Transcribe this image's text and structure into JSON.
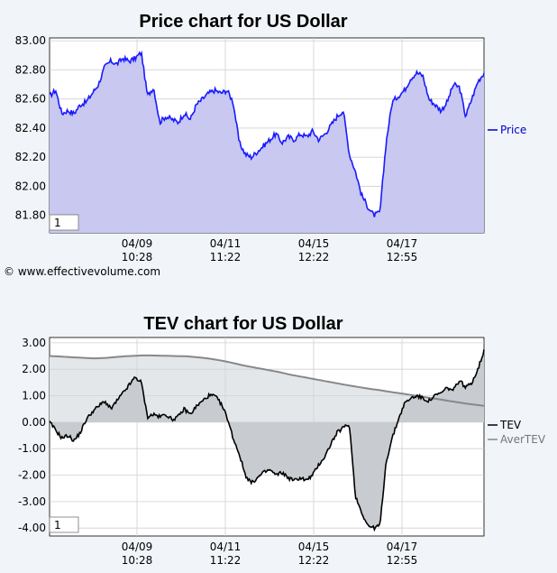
{
  "price_chart": {
    "title": "Price chart for US Dollar",
    "corner_box": "1",
    "copyright": "© www.effectivevolume.com",
    "legend": [
      {
        "name": "Price",
        "color": "#0000cc"
      }
    ],
    "colors": {
      "line": "#1a1aff",
      "fill": "#c8c8f0",
      "plot_bg": "#ffffff",
      "grid": "#d0d0d0",
      "axis": "#000000"
    }
  },
  "tev_chart": {
    "title": "TEV chart for US Dollar",
    "corner_box": "1",
    "legend": [
      {
        "name": "TEV",
        "color": "#000000"
      },
      {
        "name": "AverTEV",
        "color": "#888888"
      }
    ],
    "colors": {
      "line": "#000000",
      "aver_line": "#888888",
      "fill": "#c8ccd0",
      "plot_bg": "#ffffff",
      "grid": "#d0d0d0",
      "aver_fill": "#e4e7ea"
    }
  },
  "chart_data": [
    {
      "type": "line",
      "title": "Price chart for US Dollar",
      "xlabel": "",
      "ylabel": "",
      "ylim": [
        81.68,
        83.02
      ],
      "y_ticks": [
        "83.00",
        "82.80",
        "82.60",
        "82.40",
        "82.20",
        "82.00",
        "81.80"
      ],
      "x_ticks": [
        {
          "date": "04/09",
          "time": "10:28"
        },
        {
          "date": "04/11",
          "time": "11:22"
        },
        {
          "date": "04/15",
          "time": "12:22"
        },
        {
          "date": "04/17",
          "time": "12:55"
        }
      ],
      "grid": true,
      "legend_position": "right",
      "series": [
        {
          "name": "Price",
          "values": [
            82.62,
            82.66,
            82.5,
            82.52,
            82.5,
            82.56,
            82.58,
            82.64,
            82.7,
            82.82,
            82.86,
            82.84,
            82.88,
            82.86,
            82.88,
            82.92,
            82.62,
            82.68,
            82.44,
            82.48,
            82.46,
            82.44,
            82.5,
            82.46,
            82.56,
            82.6,
            82.64,
            82.66,
            82.64,
            82.66,
            82.58,
            82.3,
            82.22,
            82.2,
            82.24,
            82.28,
            82.32,
            82.36,
            82.3,
            82.34,
            82.32,
            82.36,
            82.34,
            82.38,
            82.32,
            82.36,
            82.42,
            82.48,
            82.52,
            82.22,
            82.1,
            81.94,
            81.86,
            81.8,
            81.82,
            82.3,
            82.58,
            82.62,
            82.66,
            82.74,
            82.78,
            82.76,
            82.6,
            82.56,
            82.52,
            82.58,
            82.7,
            82.68,
            82.48,
            82.6,
            82.72,
            82.78
          ]
        }
      ]
    },
    {
      "type": "line",
      "title": "TEV chart for US Dollar",
      "xlabel": "",
      "ylabel": "",
      "ylim": [
        -4.3,
        3.2
      ],
      "y_ticks": [
        "3.00",
        "2.00",
        "1.00",
        "0.00",
        "-1.00",
        "-2.00",
        "-3.00",
        "-4.00"
      ],
      "x_ticks": [
        {
          "date": "04/09",
          "time": "10:28"
        },
        {
          "date": "04/11",
          "time": "11:22"
        },
        {
          "date": "04/15",
          "time": "12:22"
        },
        {
          "date": "04/17",
          "time": "12:55"
        }
      ],
      "grid": true,
      "legend_position": "right",
      "series": [
        {
          "name": "TEV",
          "values": [
            0.0,
            -0.3,
            -0.6,
            -0.5,
            -0.7,
            -0.4,
            0.1,
            0.4,
            0.6,
            0.8,
            0.5,
            0.8,
            1.1,
            1.4,
            1.7,
            1.5,
            0.2,
            0.3,
            0.2,
            0.3,
            0.1,
            0.2,
            0.5,
            0.3,
            0.6,
            0.8,
            1.0,
            1.0,
            0.7,
            0.2,
            -0.6,
            -1.2,
            -2.0,
            -2.3,
            -2.1,
            -1.9,
            -1.8,
            -2.0,
            -1.9,
            -2.1,
            -2.2,
            -2.1,
            -2.2,
            -2.0,
            -1.6,
            -1.3,
            -0.8,
            -0.4,
            -0.2,
            -0.1,
            -2.8,
            -3.4,
            -3.9,
            -4.0,
            -3.9,
            -1.5,
            -0.6,
            0.1,
            0.7,
            0.9,
            1.0,
            0.9,
            0.8,
            1.0,
            1.1,
            1.3,
            1.2,
            1.6,
            1.3,
            1.5,
            2.0,
            2.7
          ]
        },
        {
          "name": "AverTEV",
          "values": [
            2.5,
            2.48,
            2.45,
            2.43,
            2.41,
            2.43,
            2.47,
            2.5,
            2.52,
            2.52,
            2.51,
            2.5,
            2.49,
            2.45,
            2.4,
            2.33,
            2.24,
            2.14,
            2.06,
            1.98,
            1.9,
            1.8,
            1.72,
            1.64,
            1.56,
            1.48,
            1.4,
            1.33,
            1.26,
            1.2,
            1.13,
            1.07,
            1.0,
            0.93,
            0.87,
            0.8,
            0.73,
            0.67,
            0.62
          ]
        }
      ]
    }
  ]
}
